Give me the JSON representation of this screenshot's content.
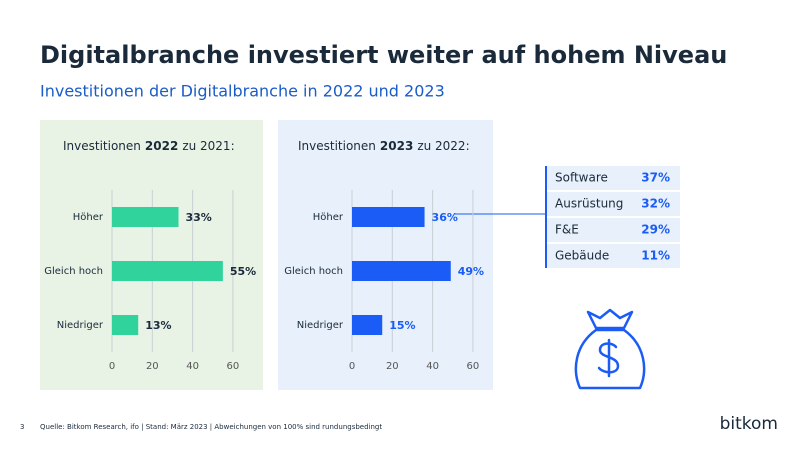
{
  "title": "Digitalbranche investiert weiter auf hohem Niveau",
  "subtitle": "Investitionen der Digitalbranche in 2022 und 2023",
  "chart_data": [
    {
      "type": "bar",
      "orientation": "horizontal",
      "title_parts": [
        "Investitionen",
        "2022",
        "zu 2021:"
      ],
      "categories": [
        "Höher",
        "Gleich hoch",
        "Niedriger"
      ],
      "values": [
        33,
        55,
        13
      ],
      "value_labels": [
        "33%",
        "55%",
        "13%"
      ],
      "color": "#2fd39b",
      "value_label_color": "#1a2a3a",
      "xlim": [
        0,
        65
      ],
      "xticks": [
        0,
        20,
        40,
        60
      ],
      "grid": true
    },
    {
      "type": "bar",
      "orientation": "horizontal",
      "title_parts": [
        "Investitionen",
        "2023",
        "zu 2022:"
      ],
      "categories": [
        "Höher",
        "Gleich hoch",
        "Niedriger"
      ],
      "values": [
        36,
        49,
        15
      ],
      "value_labels": [
        "36%",
        "49%",
        "15%"
      ],
      "color": "#1a5cf5",
      "value_label_color": "#1a5cf5",
      "xlim": [
        0,
        65
      ],
      "xticks": [
        0,
        20,
        40,
        60
      ],
      "grid": true
    }
  ],
  "breakdown": {
    "rows": [
      [
        "Software",
        "37%"
      ],
      [
        "Ausrüstung",
        "32%"
      ],
      [
        "F&E",
        "29%"
      ],
      [
        "Gebäude",
        "11%"
      ]
    ]
  },
  "footer": {
    "page": "3",
    "source": "Quelle: Bitkom Research, ifo | Stand: März 2023 | Abweichungen von 100% sind rundungsbedingt",
    "logo": "bitkom"
  }
}
